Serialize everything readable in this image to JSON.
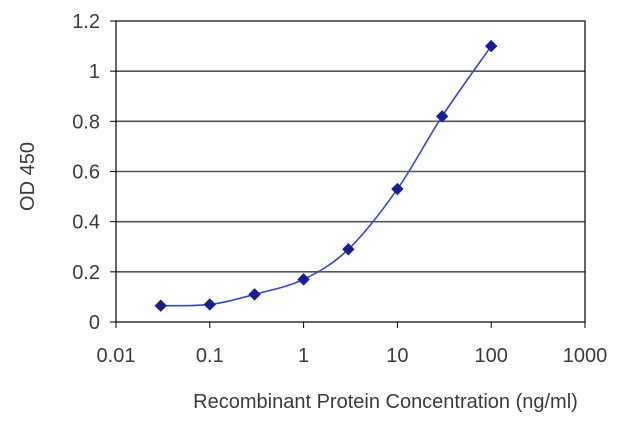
{
  "chart_data": {
    "type": "line",
    "title": "",
    "xlabel": "Recombinant Protein Concentration (ng/ml)",
    "ylabel": "OD 450",
    "x_scale": "log",
    "xlim": [
      0.01,
      1000
    ],
    "ylim": [
      0,
      1.2
    ],
    "x_ticks": [
      0.01,
      0.1,
      1,
      10,
      100,
      1000
    ],
    "x_tick_labels": [
      "0.01",
      "0.1",
      "1",
      "10",
      "100",
      "1000"
    ],
    "y_ticks": [
      0,
      0.2,
      0.4,
      0.6,
      0.8,
      1,
      1.2
    ],
    "y_tick_labels": [
      "0",
      "0.2",
      "0.4",
      "0.6",
      "0.8",
      "1",
      "1.2"
    ],
    "grid": "horizontal",
    "legend": "none",
    "series": [
      {
        "color": "#1a1f8f",
        "marker": "diamond",
        "x": [
          0.03,
          0.1,
          0.3,
          1,
          3,
          10,
          30,
          100
        ],
        "y": [
          0.065,
          0.07,
          0.11,
          0.17,
          0.29,
          0.53,
          0.82,
          1.1
        ]
      }
    ]
  }
}
